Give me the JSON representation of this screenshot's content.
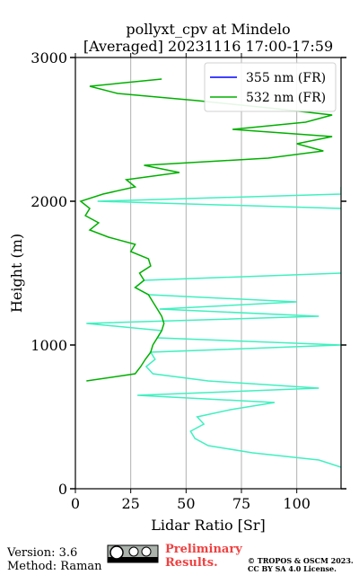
{
  "chart_data": {
    "type": "line",
    "title": [
      "pollyxt_cpv at Mindelo",
      "[Averaged] 20231116 17:00-17:59"
    ],
    "x_label": "Lidar Ratio [Sr]",
    "y_label": "Height (m)",
    "xlim": [
      0,
      120
    ],
    "xticks": [
      0,
      25,
      50,
      75,
      100
    ],
    "ylim": [
      0,
      3000
    ],
    "yticks": [
      0,
      1000,
      2000,
      3000
    ],
    "grid": true,
    "legend": "upper right",
    "heights": [
      150,
      200,
      250,
      300,
      350,
      400,
      450,
      500,
      550,
      600,
      650,
      700,
      750,
      800,
      850,
      900,
      950,
      1000,
      1050,
      1100,
      1150,
      1200,
      1250,
      1300,
      1350,
      1400,
      1450,
      1500,
      1550,
      1600,
      1650,
      1700,
      1750,
      1800,
      1850,
      1900,
      1950,
      2000,
      2050,
      2100,
      2150,
      2200,
      2250,
      2300,
      2350,
      2400,
      2450,
      2500,
      2550,
      2600,
      2650,
      2700,
      2750,
      2800,
      2850
    ],
    "series": [
      {
        "color": "#40f0c0",
        "values": [
          120,
          110,
          80,
          60,
          54,
          52,
          58,
          55,
          70,
          90,
          28,
          110,
          60,
          35,
          32,
          36,
          34,
          120,
          37,
          39,
          5,
          110,
          38,
          100,
          33,
          27,
          31,
          120,
          null,
          null,
          null,
          null,
          null,
          null,
          null,
          null,
          120,
          10,
          120,
          120,
          null,
          null,
          null,
          null,
          null,
          null,
          null,
          null,
          null,
          null,
          null,
          null,
          null,
          null,
          null
        ]
      },
      {
        "name": "355 nm (FR)",
        "color": "#0000ff",
        "values": [
          null,
          null,
          null,
          null,
          null,
          null,
          null,
          null,
          null,
          null,
          null,
          null,
          null,
          null,
          null,
          null,
          null,
          null,
          null,
          null,
          null,
          null,
          null,
          null,
          null,
          null,
          null,
          null,
          null,
          null,
          null,
          null,
          null,
          null,
          null,
          null,
          null,
          null,
          null,
          null,
          null,
          null,
          null,
          null,
          null,
          null,
          null,
          null,
          null,
          null,
          null,
          null,
          null,
          null,
          null
        ]
      },
      {
        "name": "532 nm (FR)",
        "color": "#00b000",
        "values": [
          null,
          null,
          null,
          null,
          null,
          null,
          null,
          null,
          null,
          null,
          null,
          null,
          5,
          27,
          29.5,
          31.6,
          34,
          35,
          37,
          39,
          40,
          39,
          37,
          35,
          33,
          27,
          31,
          29,
          34,
          33,
          25,
          27,
          15,
          6.5,
          10.5,
          4.5,
          6.5,
          2.4,
          12.5,
          27,
          23,
          47,
          31,
          87,
          112,
          100,
          116,
          71,
          104,
          116,
          87,
          55,
          19,
          6.5,
          39
        ]
      }
    ]
  },
  "footer": {
    "version": "Version: 3.6",
    "method": "Method: Raman",
    "status": [
      "Preliminary",
      "Results."
    ],
    "copyright": "© TROPOS & OSCM 2023.",
    "license": "CC BY SA 4.0 License."
  }
}
